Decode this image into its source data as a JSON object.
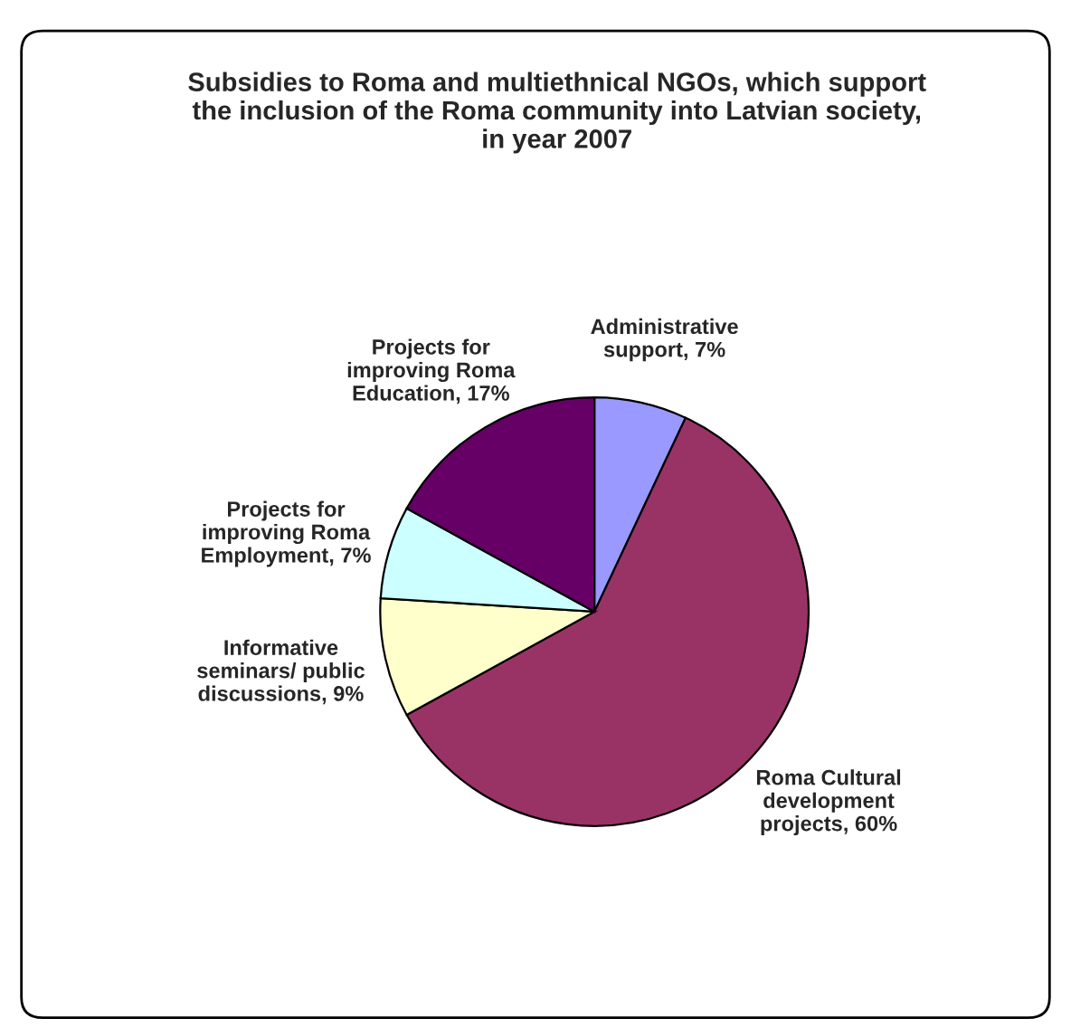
{
  "chart_data": {
    "type": "pie",
    "title": "Subsidies to Roma and multiethnical NGOs, which support the inclusion of the Roma community into Latvian society, in year 2007",
    "categories": [
      "Administrative support",
      "Roma Cultural development projects",
      "Informative seminars/ public discussions",
      "Projects for improving Roma Employment",
      "Projects for improving Roma Education"
    ],
    "values": [
      7,
      60,
      9,
      7,
      17
    ],
    "value_labels": [
      "7%",
      "60%",
      "9%",
      "7%",
      "17%"
    ],
    "colors": [
      "#9999ff",
      "#993366",
      "#ffffcc",
      "#ccffff",
      "#660066"
    ],
    "legend": false
  }
}
